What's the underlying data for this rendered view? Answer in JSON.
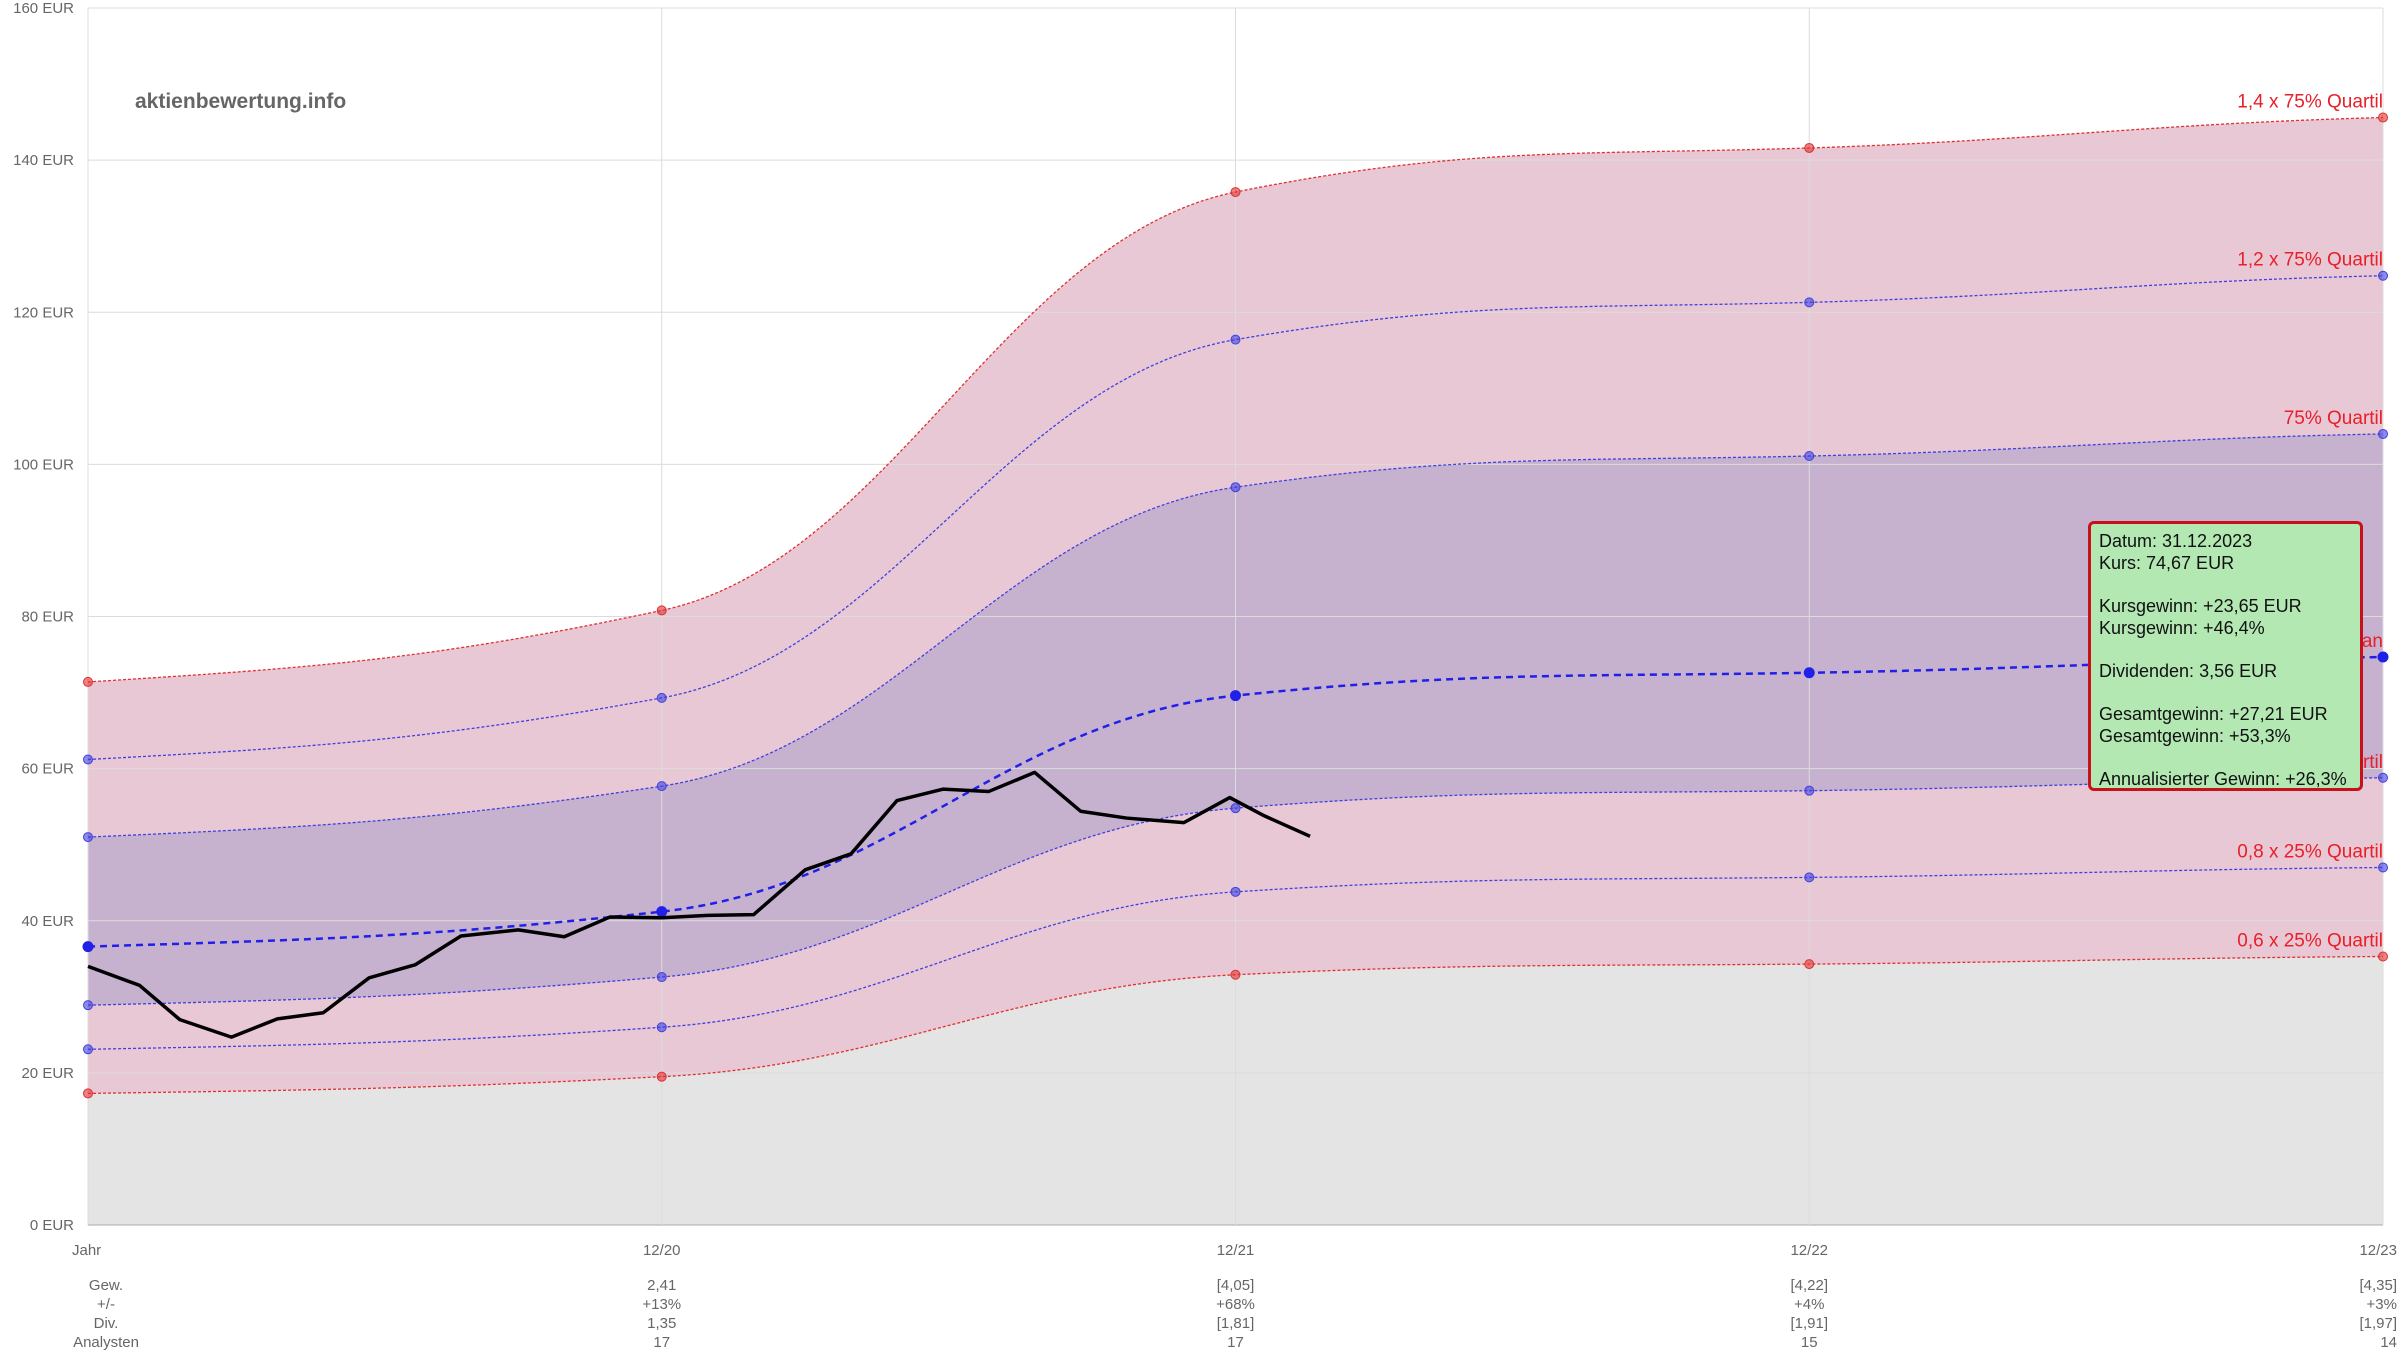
{
  "brand": "aktienbewertung.info",
  "chart_data": {
    "type": "area",
    "x_categories": [
      "Jahr",
      "12/20",
      "12/21",
      "12/22",
      "12/23"
    ],
    "y_unit": "EUR",
    "y_ticks": [
      "0 EUR",
      "20 EUR",
      "40 EUR",
      "60 EUR",
      "80 EUR",
      "100 EUR",
      "120 EUR",
      "140 EUR",
      "160 EUR"
    ],
    "ylim": [
      0,
      160
    ],
    "grid": true,
    "bands": [
      {
        "name": "1,4 x 75% Quartil",
        "color": "#e03030",
        "values": [
          71.4,
          80.8,
          135.8,
          141.6,
          145.6
        ]
      },
      {
        "name": "1,2 x 75% Quartil",
        "color": "#4040e0",
        "values": [
          61.2,
          69.3,
          116.4,
          121.3,
          124.8
        ]
      },
      {
        "name": "75% Quartil",
        "color": "#4040e0",
        "values": [
          51.0,
          57.7,
          97.0,
          101.1,
          104.0
        ]
      },
      {
        "name": "25% Quartil",
        "color": "#4040e0",
        "values": [
          28.9,
          32.6,
          54.8,
          57.1,
          58.8
        ]
      },
      {
        "name": "0,8 x 25% Quartil",
        "color": "#4040e0",
        "values": [
          23.1,
          26.0,
          43.8,
          45.7,
          47.0
        ]
      },
      {
        "name": "0,6 x 25% Quartil",
        "color": "#e03030",
        "values": [
          17.3,
          19.5,
          32.9,
          34.3,
          35.3
        ]
      }
    ],
    "median": {
      "name": "Median",
      "color": "#2020e8",
      "values": [
        36.6,
        41.2,
        69.6,
        72.6,
        74.67
      ]
    },
    "price": {
      "x": [
        0.0,
        0.09,
        0.16,
        0.25,
        0.33,
        0.41,
        0.49,
        0.57,
        0.65,
        0.75,
        0.83,
        0.91,
        1.0,
        1.08,
        1.16,
        1.25,
        1.33,
        1.41,
        1.49,
        1.57,
        1.65,
        1.73,
        1.81,
        1.91,
        1.99,
        2.05,
        2.13
      ],
      "y": [
        34.0,
        31.5,
        27.0,
        24.7,
        27.1,
        27.9,
        32.5,
        34.2,
        38.0,
        38.8,
        37.9,
        40.5,
        40.4,
        40.7,
        40.8,
        46.7,
        48.8,
        55.8,
        57.3,
        57.0,
        59.5,
        54.4,
        53.5,
        52.9,
        56.2,
        53.8,
        51.1
      ]
    },
    "table": {
      "row_labels": [
        "Gew.",
        "+/-",
        "Div.",
        "Analysten"
      ],
      "columns": [
        [
          "2,41",
          "+13%",
          "1,35",
          "17"
        ],
        [
          "[4,05]",
          "+68%",
          "[1,81]",
          "17"
        ],
        [
          "[4,22]",
          "+4%",
          "[1,91]",
          "15"
        ],
        [
          "[4,35]",
          "+3%",
          "[1,97]",
          "14"
        ]
      ]
    },
    "tooltip": {
      "datum": "Datum: 31.12.2023",
      "kurs": "Kurs: 74,67 EUR",
      "kursgewinn_eur": "Kursgewinn: +23,65 EUR",
      "kursgewinn_pct": "Kursgewinn: +46,4%",
      "dividenden": "Dividenden: 3,56 EUR",
      "gesamtgewinn_eur": "Gesamtgewinn: +27,21 EUR",
      "gesamtgewinn_pct": "Gesamtgewinn: +53,3%",
      "annualisiert": "Annualisierter Gewinn: +26,3%"
    }
  }
}
